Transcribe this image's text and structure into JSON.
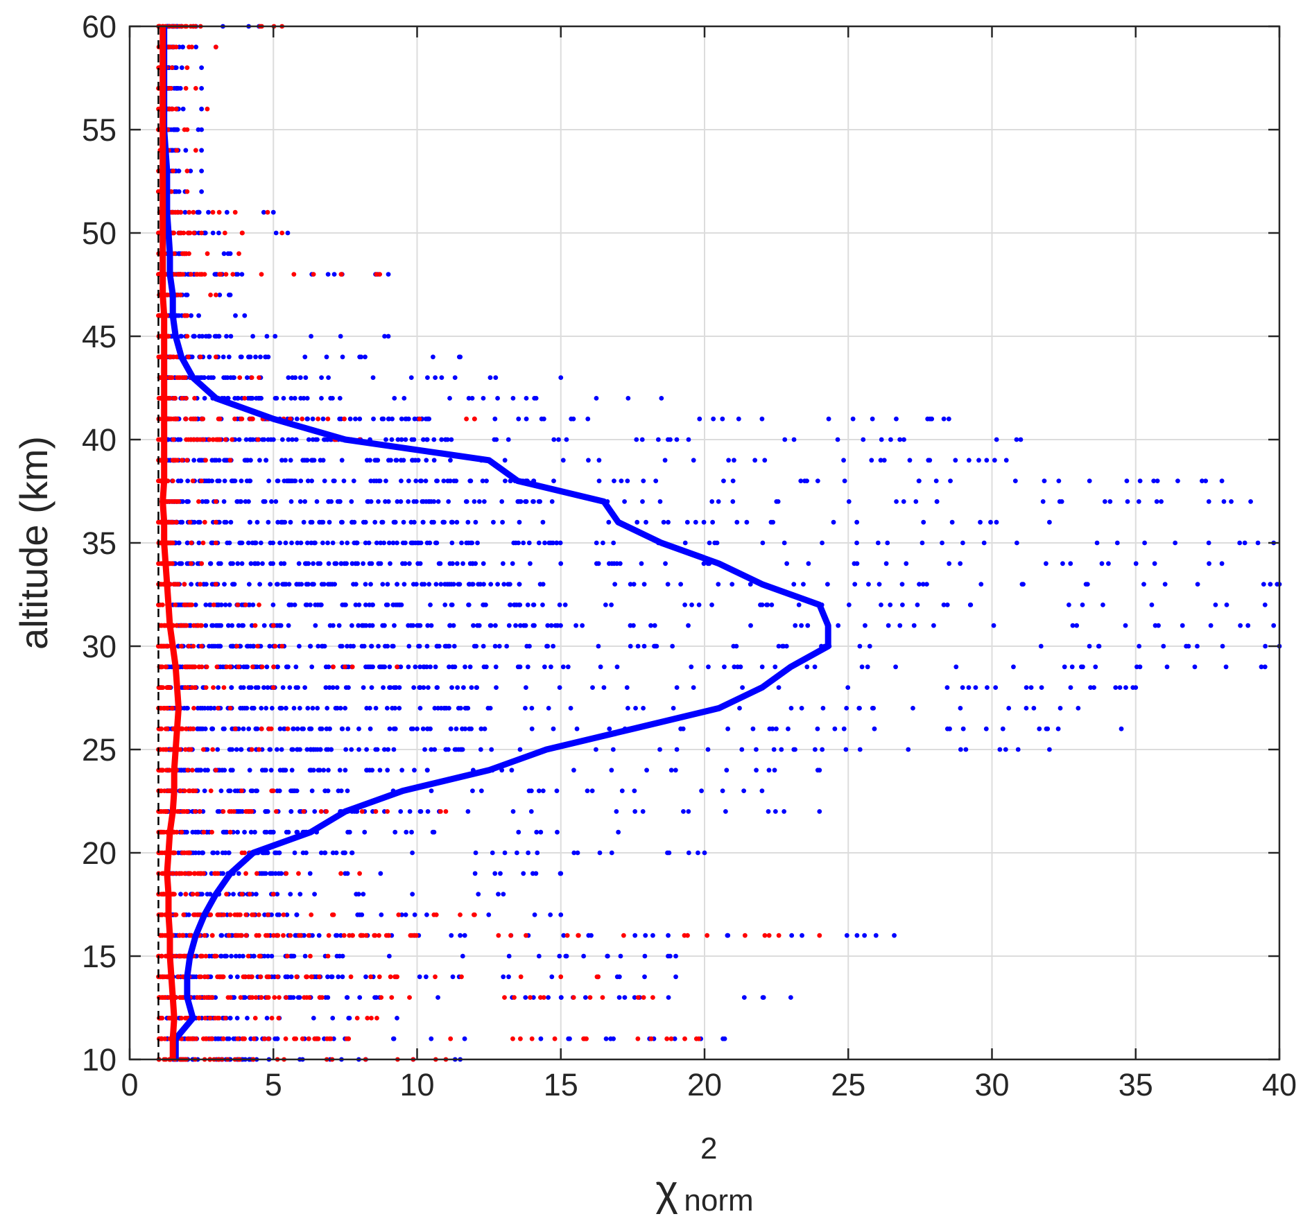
{
  "chart_data": {
    "type": "scatter",
    "title": "",
    "xlabel": {
      "base": "χ",
      "sup": "2",
      "sub": "norm"
    },
    "ylabel": "altitude (km)",
    "xlim": [
      0,
      40
    ],
    "ylim": [
      10,
      60
    ],
    "xticks": [
      0,
      5,
      10,
      15,
      20,
      25,
      30,
      35,
      40
    ],
    "yticks": [
      10,
      15,
      20,
      25,
      30,
      35,
      40,
      45,
      50,
      55,
      60
    ],
    "grid": true,
    "reference_line": {
      "x": 1,
      "style": "dashed",
      "color": "#000000"
    },
    "scatter_y": [
      10,
      11,
      12,
      13,
      14,
      15,
      16,
      17,
      18,
      19,
      20,
      21,
      22,
      23,
      24,
      25,
      26,
      27,
      28,
      29,
      30,
      31,
      32,
      33,
      34,
      35,
      36,
      37,
      38,
      39,
      40,
      41,
      42,
      43,
      44,
      45,
      46,
      47,
      48,
      49,
      50,
      51,
      52,
      53,
      54,
      55,
      56,
      57,
      58,
      59,
      60
    ],
    "series": [
      {
        "color": "#0000ff",
        "style": "scatter",
        "x_range_per_altitude": [
          [
            1.3,
            11.5
          ],
          [
            1.3,
            20.7
          ],
          [
            1.3,
            9.3
          ],
          [
            1.3,
            23
          ],
          [
            1.3,
            19
          ],
          [
            1.3,
            19
          ],
          [
            1.3,
            26.6
          ],
          [
            1.3,
            15
          ],
          [
            1.3,
            13
          ],
          [
            1.3,
            15
          ],
          [
            1.3,
            20
          ],
          [
            1.3,
            17
          ],
          [
            1.3,
            24
          ],
          [
            1.3,
            22
          ],
          [
            1.3,
            24
          ],
          [
            1.3,
            32
          ],
          [
            1.3,
            34.5
          ],
          [
            1.3,
            33
          ],
          [
            1.3,
            35
          ],
          [
            1.3,
            39.5
          ],
          [
            1.3,
            40
          ],
          [
            1.3,
            39.8
          ],
          [
            1.3,
            39.5
          ],
          [
            1.3,
            40
          ],
          [
            1.3,
            38
          ],
          [
            1.3,
            39.8
          ],
          [
            1.3,
            32
          ],
          [
            1.3,
            39
          ],
          [
            1.3,
            38
          ],
          [
            1.3,
            30.5
          ],
          [
            1.3,
            31
          ],
          [
            1.3,
            28.5
          ],
          [
            1.3,
            18.5
          ],
          [
            1.3,
            15
          ],
          [
            1.3,
            11.5
          ],
          [
            1.3,
            9
          ],
          [
            1.3,
            4
          ],
          [
            1.3,
            3.5
          ],
          [
            1.3,
            9
          ],
          [
            1.3,
            3.5
          ],
          [
            1.3,
            5.5
          ],
          [
            1.3,
            5
          ],
          [
            1.3,
            2.5
          ],
          [
            1.3,
            2.5
          ],
          [
            1.3,
            2.5
          ],
          [
            1.3,
            2.5
          ],
          [
            1.3,
            2.5
          ],
          [
            1.3,
            2.5
          ],
          [
            1.3,
            2.5
          ],
          [
            1.3,
            3
          ],
          [
            1.3,
            4.5
          ]
        ]
      },
      {
        "color": "#ff0000",
        "style": "scatter",
        "x_range_per_altitude": [
          [
            1,
            11
          ],
          [
            1,
            19.8
          ],
          [
            1,
            8.6
          ],
          [
            1,
            18.2
          ],
          [
            1,
            16.3
          ],
          [
            1,
            6.9
          ],
          [
            1,
            24
          ],
          [
            1,
            12
          ],
          [
            1,
            5
          ],
          [
            1,
            8
          ],
          [
            1,
            4.2
          ],
          [
            1,
            3.5
          ],
          [
            1,
            11
          ],
          [
            1,
            5
          ],
          [
            1,
            3
          ],
          [
            1,
            4.5
          ],
          [
            1,
            5.5
          ],
          [
            1,
            3.5
          ],
          [
            1,
            5
          ],
          [
            1,
            9.3
          ],
          [
            1,
            5.3
          ],
          [
            1,
            5
          ],
          [
            1,
            4.5
          ],
          [
            1,
            3
          ],
          [
            1,
            2.5
          ],
          [
            1,
            3
          ],
          [
            1,
            3
          ],
          [
            1,
            3
          ],
          [
            1,
            2.5
          ],
          [
            1,
            3.5
          ],
          [
            1,
            8
          ],
          [
            1,
            12
          ],
          [
            1,
            4
          ],
          [
            1,
            4.5
          ],
          [
            1,
            3
          ],
          [
            1,
            2
          ],
          [
            1,
            2
          ],
          [
            1,
            3
          ],
          [
            1,
            8.7
          ],
          [
            1,
            3.8
          ],
          [
            1,
            5.3
          ],
          [
            1,
            4.8
          ],
          [
            1,
            2
          ],
          [
            1,
            2
          ],
          [
            1,
            2.3
          ],
          [
            1,
            2
          ],
          [
            1,
            2.7
          ],
          [
            1,
            2.3
          ],
          [
            1,
            2
          ],
          [
            1,
            3
          ],
          [
            1,
            5.3
          ]
        ]
      },
      {
        "color": "#0000ff",
        "style": "line",
        "x": [
          1.6,
          1.6,
          2.2,
          2.0,
          2.0,
          2.1,
          2.3,
          2.6,
          3.0,
          3.5,
          4.3,
          6.3,
          7.5,
          9.5,
          12.5,
          14.5,
          17.5,
          20.5,
          22.0,
          23.0,
          24.3,
          24.3,
          24.0,
          22.0,
          20.5,
          18.5,
          17.0,
          16.5,
          13.5,
          12.5,
          7.5,
          5.0,
          3.0,
          2.2,
          1.8,
          1.6,
          1.5,
          1.5,
          1.4,
          1.4,
          1.35,
          1.3,
          1.3,
          1.3,
          1.25,
          1.2,
          1.2,
          1.2,
          1.2,
          1.2,
          1.2
        ],
        "y": [
          10,
          11,
          12,
          13,
          14,
          15,
          16,
          17,
          18,
          19,
          20,
          21,
          22,
          23,
          24,
          25,
          26,
          27,
          28,
          29,
          30,
          31,
          32,
          33,
          34,
          35,
          36,
          37,
          38,
          39,
          40,
          41,
          42,
          43,
          44,
          45,
          46,
          47,
          48,
          49,
          50,
          51,
          52,
          53,
          54,
          55,
          56,
          57,
          58,
          59,
          60
        ]
      },
      {
        "color": "#ff0000",
        "style": "line",
        "x": [
          1.5,
          1.5,
          1.55,
          1.5,
          1.45,
          1.4,
          1.4,
          1.35,
          1.35,
          1.3,
          1.35,
          1.4,
          1.5,
          1.55,
          1.55,
          1.6,
          1.65,
          1.7,
          1.65,
          1.6,
          1.5,
          1.4,
          1.35,
          1.3,
          1.25,
          1.2,
          1.2,
          1.15,
          1.2,
          1.2,
          1.2,
          1.2,
          1.2,
          1.2,
          1.2,
          1.2,
          1.2,
          1.15,
          1.15,
          1.15,
          1.15,
          1.15,
          1.15,
          1.15,
          1.15,
          1.15,
          1.15,
          1.15,
          1.15,
          1.15,
          1.15
        ],
        "y": [
          10,
          11,
          12,
          13,
          14,
          15,
          16,
          17,
          18,
          19,
          20,
          21,
          22,
          23,
          24,
          25,
          26,
          27,
          28,
          29,
          30,
          31,
          32,
          33,
          34,
          35,
          36,
          37,
          38,
          39,
          40,
          41,
          42,
          43,
          44,
          45,
          46,
          47,
          48,
          49,
          50,
          51,
          52,
          53,
          54,
          55,
          56,
          57,
          58,
          59,
          60
        ]
      }
    ]
  }
}
